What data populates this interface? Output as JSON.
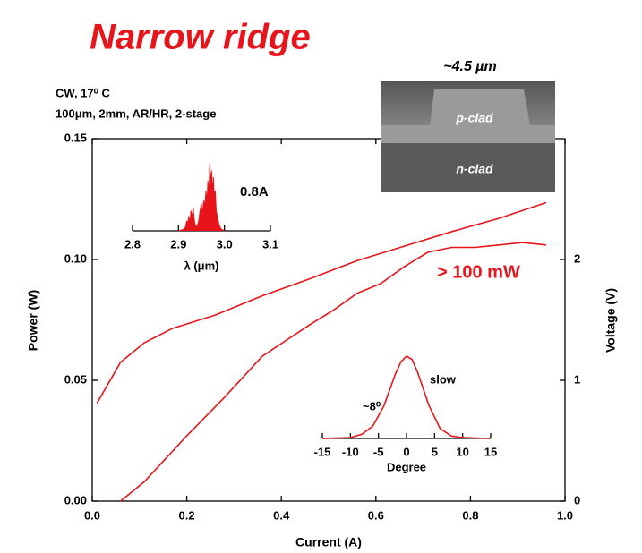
{
  "chart_data": [
    {
      "type": "line",
      "title": "Narrow ridge",
      "annotations": [
        "CW, 17⁰ C",
        "100μm, 2mm, AR/HR, 2-stage",
        "> 100 mW"
      ],
      "image_labels": [
        "~4.5 µm",
        "p-clad",
        "n-clad"
      ],
      "x_label": "Current (A)",
      "y_label": "Power (W)",
      "y2_label": "Voltage (V)",
      "xlim": [
        0,
        1.0
      ],
      "xticks": [
        {
          "value": 0,
          "label": "0.0"
        },
        0.2,
        0.4,
        0.6,
        0.8,
        {
          "value": 1.0,
          "label": "1.0"
        }
      ],
      "ylim": [
        0,
        0.15
      ],
      "yticks": [
        {
          "value": 0,
          "label": "0.00"
        },
        {
          "value": 0.05,
          "label": "0.05"
        },
        {
          "value": 0.1,
          "label": "0.10"
        },
        {
          "value": 0.15,
          "label": "0.15"
        }
      ],
      "y2lim": [
        0,
        3
      ],
      "y2ticks": [
        0,
        1,
        2
      ],
      "series": [
        {
          "color": "#e8141a",
          "x": [
            0.06,
            0.11,
            0.2,
            0.28,
            0.36,
            0.46,
            0.51,
            0.56,
            0.61,
            0.66,
            0.71,
            0.76,
            0.81,
            0.86,
            0.91,
            0.96
          ],
          "values": [
            0,
            0.008,
            0.027,
            0.043,
            0.06,
            0.073,
            0.079,
            0.086,
            0.09,
            0.097,
            0.103,
            0.105,
            0.105,
            0.106,
            0.107,
            0.106
          ]
        },
        {
          "color": "#e8141a",
          "axis": "y2",
          "x": [
            0.01,
            0.06,
            0.11,
            0.17,
            0.26,
            0.36,
            0.46,
            0.56,
            0.66,
            0.76,
            0.86,
            0.96
          ],
          "values": [
            0.81,
            1.15,
            1.31,
            1.43,
            1.54,
            1.7,
            1.84,
            1.99,
            2.11,
            2.23,
            2.34,
            2.47
          ]
        }
      ]
    },
    {
      "type": "spectrum",
      "annotations": [
        "0.8A"
      ],
      "x_label": "λ (μm)",
      "xlim": [
        2.8,
        3.1
      ],
      "xticks": [
        2.8,
        2.9,
        {
          "value": 3.0,
          "label": "3.0"
        },
        3.1
      ],
      "series": [
        {
          "color": "#e8141a",
          "x": [
            2.9,
            2.91,
            2.915,
            2.918,
            2.92,
            2.922,
            2.925,
            2.927,
            2.93,
            2.932,
            2.934,
            2.936,
            2.94,
            2.944,
            2.947,
            2.95,
            2.952,
            2.955,
            2.957,
            2.96,
            2.962,
            2.964,
            2.966,
            2.968,
            2.97,
            2.972,
            2.974,
            2.976,
            2.978,
            2.98,
            2.982,
            2.985,
            2.988,
            2.992,
            3.0
          ],
          "values": [
            0,
            0.02,
            0.05,
            0.15,
            0.08,
            0.22,
            0.12,
            0.3,
            0.2,
            0.35,
            0.18,
            0.1,
            0.05,
            0.15,
            0.3,
            0.4,
            0.25,
            0.45,
            0.35,
            0.6,
            0.4,
            0.75,
            0.5,
            1.0,
            0.7,
            0.9,
            0.55,
            0.8,
            0.45,
            0.6,
            0.3,
            0.2,
            0.1,
            0.03,
            0
          ]
        }
      ]
    },
    {
      "type": "line",
      "annotations": [
        "slow",
        "~8⁰"
      ],
      "x_label": "Degree",
      "xlim": [
        -15,
        15
      ],
      "xticks": [
        -15,
        -10,
        -5,
        0,
        5,
        10,
        15
      ],
      "series": [
        {
          "color": "#e8141a",
          "x": [
            -15,
            -10,
            -8,
            -6,
            -4,
            -2,
            -1,
            0,
            1,
            2,
            4,
            6,
            8,
            10,
            15
          ],
          "values": [
            0,
            0.01,
            0.05,
            0.15,
            0.4,
            0.78,
            0.93,
            1.0,
            0.96,
            0.8,
            0.4,
            0.12,
            0.03,
            0.01,
            0
          ]
        }
      ]
    }
  ]
}
